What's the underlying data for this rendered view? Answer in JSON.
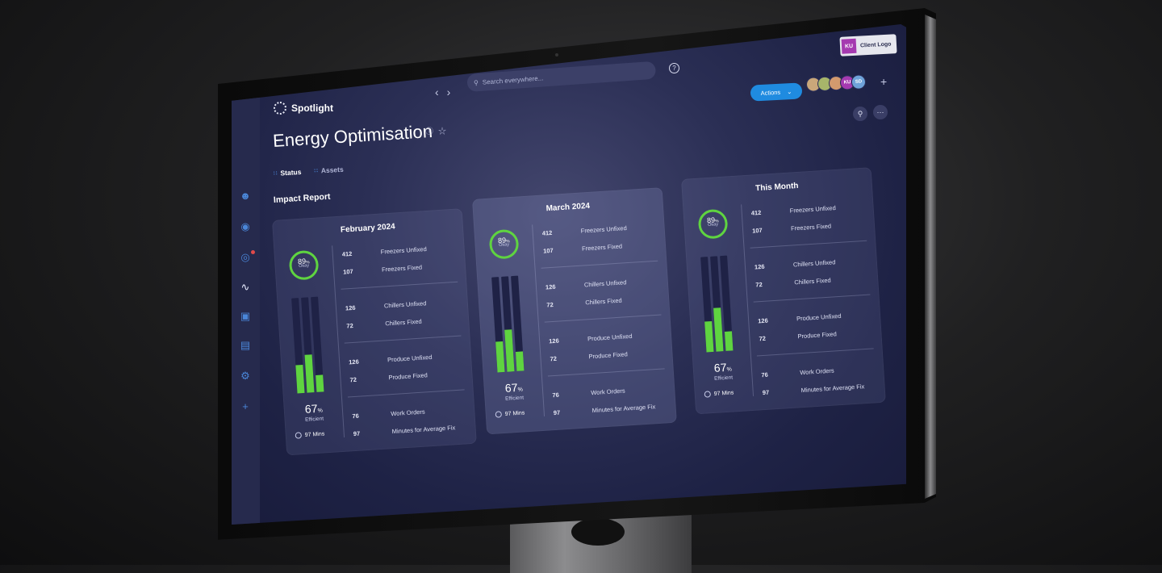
{
  "app": {
    "name": "Spotlight"
  },
  "header": {
    "search_placeholder": "Search everywhere...",
    "actions_label": "Actions",
    "client_logo": {
      "badge": "KU",
      "text": "Client Logo"
    },
    "avatars": [
      {
        "initials": "",
        "color": "#c9a77a"
      },
      {
        "initials": "",
        "color": "#a7b56a"
      },
      {
        "initials": "",
        "color": "#d39a6e"
      },
      {
        "initials": "KU",
        "color": "#a53ab0"
      },
      {
        "initials": "SD",
        "color": "#6fa3d9"
      }
    ]
  },
  "page": {
    "title": "Energy Optimisation"
  },
  "tabs": [
    {
      "label": "Status"
    },
    {
      "label": "Assets"
    }
  ],
  "section": {
    "title": "Impact Report"
  },
  "sidebar_icons": [
    "user-icon",
    "location-pin-icon",
    "target-icon",
    "pulse-icon",
    "monitor-chart-icon",
    "document-icon",
    "gear-icon",
    "plus-icon"
  ],
  "cards": [
    {
      "title": "February 2024",
      "ring": {
        "value": "89",
        "unit": "%",
        "label": "Okay"
      },
      "bars": [
        0.3,
        0.4,
        0.18
      ],
      "efficiency": {
        "value": "67",
        "unit": "%",
        "label": "Efficient"
      },
      "mins": "97 Mins",
      "groups": [
        [
          {
            "num": "412",
            "label": "Freezers Unfixed"
          },
          {
            "num": "107",
            "label": "Freezers Fixed"
          }
        ],
        [
          {
            "num": "126",
            "label": "Chillers Unfixed"
          },
          {
            "num": "72",
            "label": "Chillers Fixed"
          }
        ],
        [
          {
            "num": "126",
            "label": "Produce Unfixed"
          },
          {
            "num": "72",
            "label": "Produce Fixed"
          }
        ],
        [
          {
            "num": "76",
            "label": "Work Orders"
          },
          {
            "num": "97",
            "label": "Minutes for Average Fix"
          }
        ]
      ]
    },
    {
      "title": "March 2024",
      "ring": {
        "value": "89",
        "unit": "%",
        "label": "Okay"
      },
      "bars": [
        0.32,
        0.44,
        0.2
      ],
      "efficiency": {
        "value": "67",
        "unit": "%",
        "label": "Efficient"
      },
      "mins": "97 Mins",
      "groups": [
        [
          {
            "num": "412",
            "label": "Freezers Unfixed"
          },
          {
            "num": "107",
            "label": "Freezers Fixed"
          }
        ],
        [
          {
            "num": "126",
            "label": "Chillers Unfixed"
          },
          {
            "num": "72",
            "label": "Chillers Fixed"
          }
        ],
        [
          {
            "num": "126",
            "label": "Produce Unfixed"
          },
          {
            "num": "72",
            "label": "Produce Fixed"
          }
        ],
        [
          {
            "num": "76",
            "label": "Work Orders"
          },
          {
            "num": "97",
            "label": "Minutes for Average Fix"
          }
        ]
      ]
    },
    {
      "title": "This Month",
      "ring": {
        "value": "89",
        "unit": "%",
        "label": "Okay"
      },
      "bars": [
        0.32,
        0.46,
        0.2
      ],
      "efficiency": {
        "value": "67",
        "unit": "%",
        "label": "Efficient"
      },
      "mins": "97 Mins",
      "groups": [
        [
          {
            "num": "412",
            "label": "Freezers Unfixed"
          },
          {
            "num": "107",
            "label": "Freezers Fixed"
          }
        ],
        [
          {
            "num": "126",
            "label": "Chillers Unfixed"
          },
          {
            "num": "72",
            "label": "Chillers Fixed"
          }
        ],
        [
          {
            "num": "126",
            "label": "Produce Unfixed"
          },
          {
            "num": "72",
            "label": "Produce Fixed"
          }
        ],
        [
          {
            "num": "76",
            "label": "Work Orders"
          },
          {
            "num": "97",
            "label": "Minutes for Average Fix"
          }
        ]
      ]
    }
  ],
  "colors": {
    "accent_green": "#5fd440",
    "accent_blue": "#1f8be0",
    "screen_bg": "#262a4d"
  }
}
